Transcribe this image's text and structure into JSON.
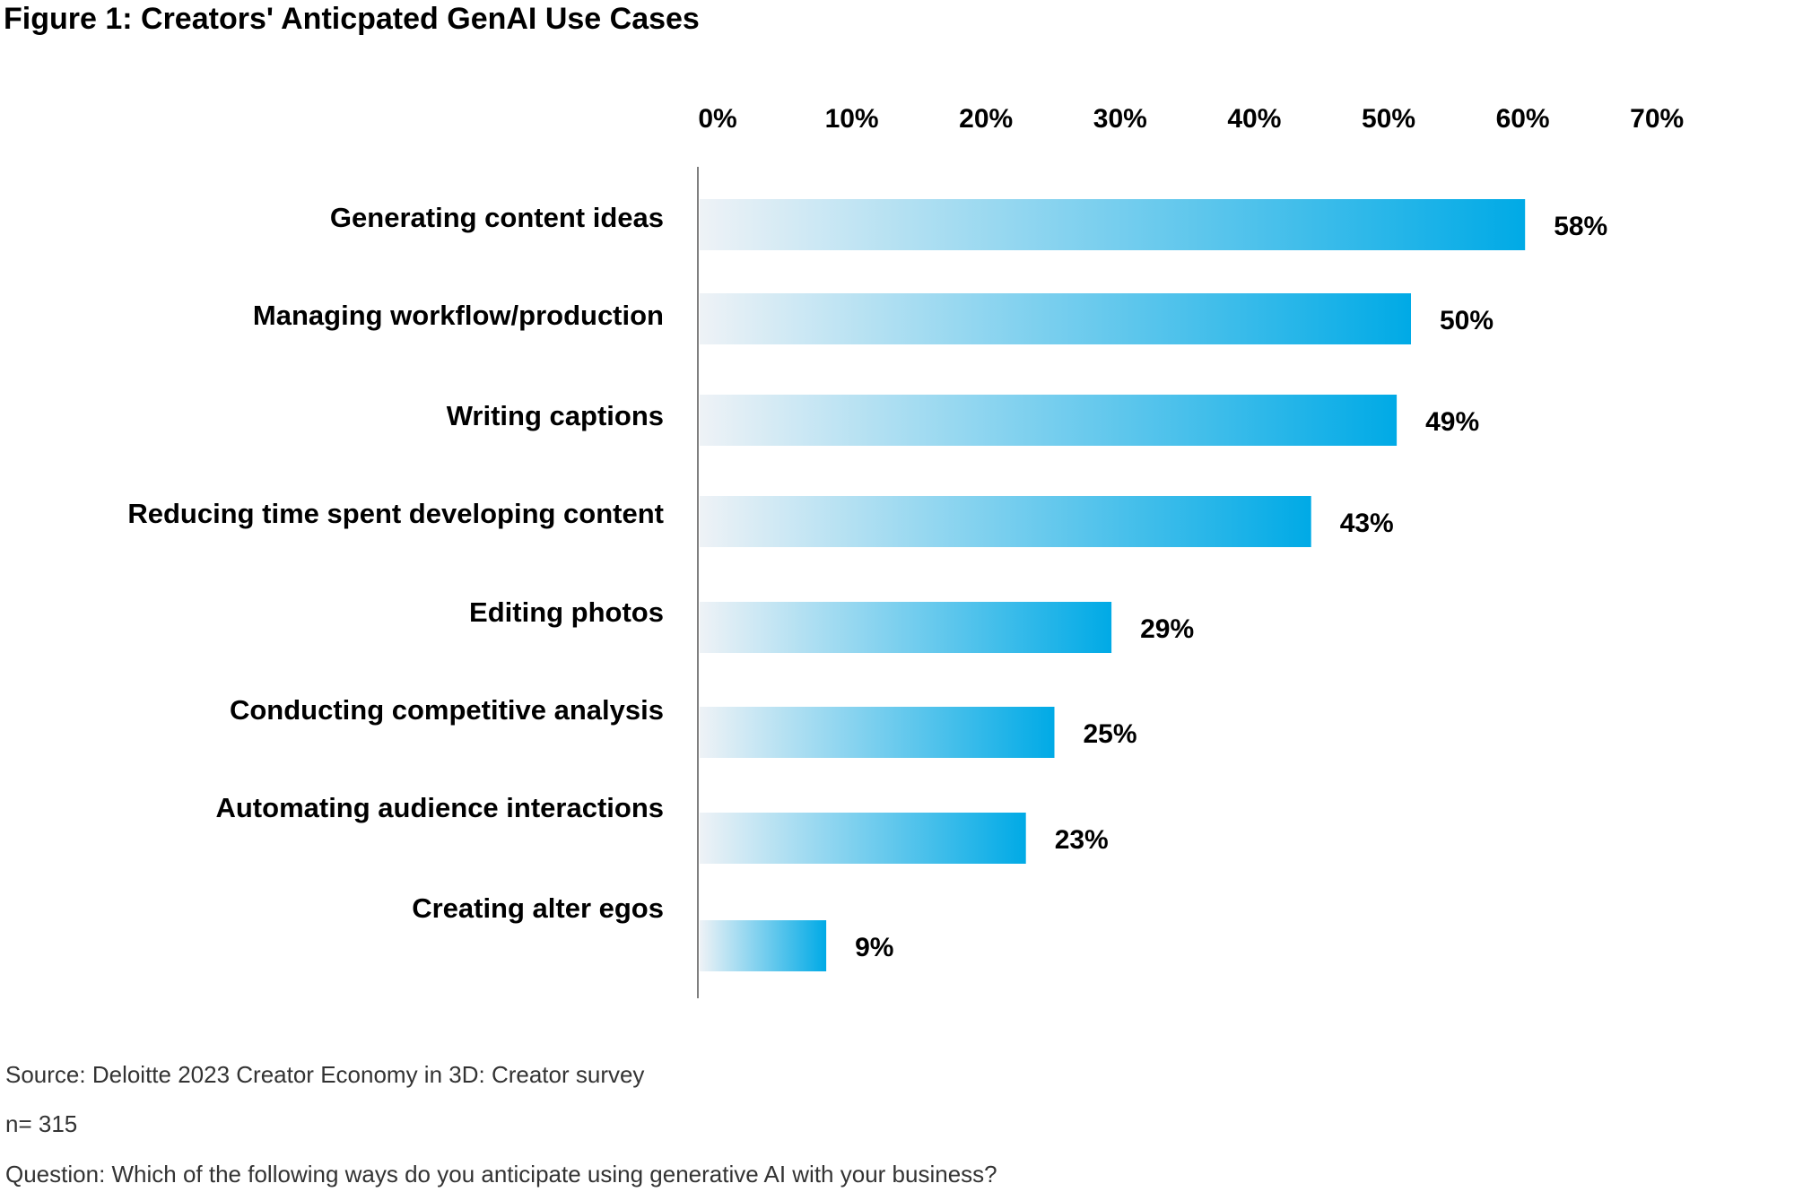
{
  "title": "Figure 1: Creators' Anticpated GenAI Use Cases",
  "chart_data": {
    "type": "bar",
    "orientation": "horizontal",
    "title": "Figure 1: Creators' Anticpated GenAI Use Cases",
    "categories": [
      "Generating content ideas",
      "Managing workflow/production",
      "Writing captions",
      "Reducing time spent developing content",
      "Editing photos",
      "Conducting competitive analysis",
      "Automating audience interactions",
      "Creating alter egos"
    ],
    "values": [
      58,
      50,
      49,
      43,
      29,
      25,
      23,
      9
    ],
    "value_labels": [
      "58%",
      "50%",
      "49%",
      "43%",
      "29%",
      "25%",
      "23%",
      "9%"
    ],
    "x_ticks": [
      "0%",
      "10%",
      "20%",
      "30%",
      "40%",
      "50%",
      "60%",
      "70%"
    ],
    "xlim": [
      0,
      70
    ],
    "axis_position": "top",
    "grid": false,
    "bar_gradient": [
      "#eef2f6",
      "#00aae6"
    ]
  },
  "footnotes": {
    "source": "Source: Deloitte 2023 Creator Economy in 3D: Creator survey",
    "n": "n= 315",
    "question": "Question: Which of the following ways do you anticipate using generative AI with your business?"
  }
}
